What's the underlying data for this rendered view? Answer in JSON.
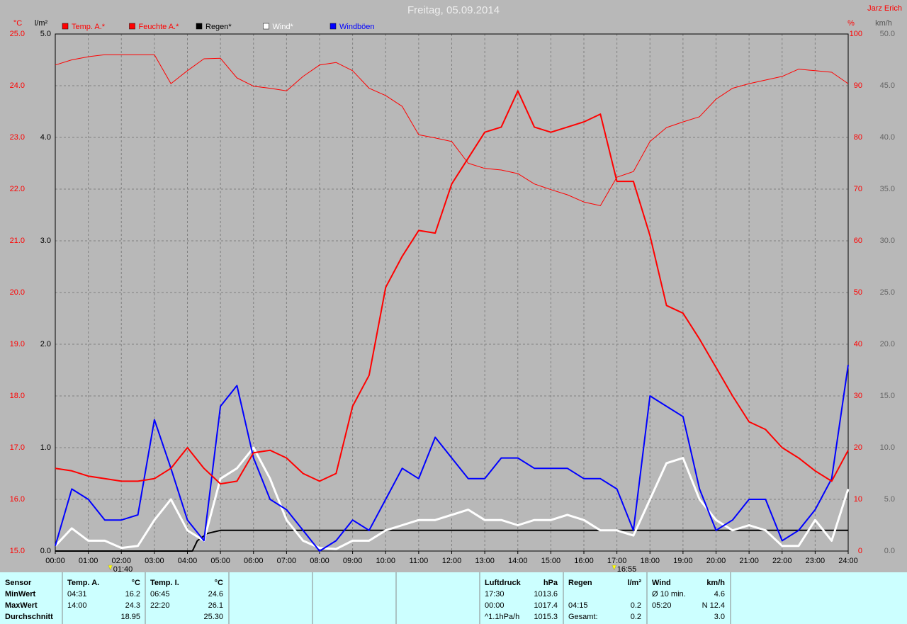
{
  "chart_data": {
    "type": "line",
    "title": "Freitag, 05.09.2014",
    "author": "Jarz Erich",
    "axis_units": {
      "y": "°C",
      "y3": "l/m²",
      "y2": "%",
      "y4": "km/h"
    },
    "xlim": [
      0,
      24
    ],
    "xticks": [
      {
        "value": 0,
        "label": "00:00"
      },
      {
        "value": 1,
        "label": "01:00"
      },
      {
        "value": 2,
        "label": "02:00"
      },
      {
        "value": 3,
        "label": "03:00"
      },
      {
        "value": 4,
        "label": "04:00"
      },
      {
        "value": 5,
        "label": "05:00"
      },
      {
        "value": 6,
        "label": "06:00"
      },
      {
        "value": 7,
        "label": "07:00"
      },
      {
        "value": 8,
        "label": "08:00"
      },
      {
        "value": 9,
        "label": "09:00"
      },
      {
        "value": 10,
        "label": "10:00"
      },
      {
        "value": 11,
        "label": "11:00"
      },
      {
        "value": 12,
        "label": "12:00"
      },
      {
        "value": 13,
        "label": "13:00"
      },
      {
        "value": 14,
        "label": "14:00"
      },
      {
        "value": 15,
        "label": "15:00"
      },
      {
        "value": 16,
        "label": "16:00"
      },
      {
        "value": 17,
        "label": "17:00"
      },
      {
        "value": 18,
        "label": "18:00"
      },
      {
        "value": 19,
        "label": "19:00"
      },
      {
        "value": 20,
        "label": "20:00"
      },
      {
        "value": 21,
        "label": "21:00"
      },
      {
        "value": 22,
        "label": "22:00"
      },
      {
        "value": 23,
        "label": "23:00"
      },
      {
        "value": 24,
        "label": "24:00"
      }
    ],
    "ylim": [
      15,
      25
    ],
    "yticks": [
      {
        "value": 15,
        "label": "15.0"
      },
      {
        "value": 16,
        "label": "16.0"
      },
      {
        "value": 17,
        "label": "17.0"
      },
      {
        "value": 18,
        "label": "18.0"
      },
      {
        "value": 19,
        "label": "19.0"
      },
      {
        "value": 20,
        "label": "20.0"
      },
      {
        "value": 21,
        "label": "21.0"
      },
      {
        "value": 22,
        "label": "22.0"
      },
      {
        "value": 23,
        "label": "23.0"
      },
      {
        "value": 24,
        "label": "24.0"
      },
      {
        "value": 25,
        "label": "25.0"
      }
    ],
    "y3lim": [
      0,
      5
    ],
    "y3ticks": [
      {
        "value": 0,
        "label": "0.0"
      },
      {
        "value": 1,
        "label": "1.0"
      },
      {
        "value": 2,
        "label": "2.0"
      },
      {
        "value": 3,
        "label": "3.0"
      },
      {
        "value": 4,
        "label": "4.0"
      },
      {
        "value": 5,
        "label": "5.0"
      }
    ],
    "y2lim": [
      0,
      100
    ],
    "y2ticks": [
      0,
      10,
      20,
      30,
      40,
      50,
      60,
      70,
      80,
      90,
      100
    ],
    "y4lim": [
      0,
      50
    ],
    "y4ticks": [
      {
        "value": 0,
        "label": "0.0"
      },
      {
        "value": 5,
        "label": "5.0"
      },
      {
        "value": 10,
        "label": "10.0"
      },
      {
        "value": 15,
        "label": "15.0"
      },
      {
        "value": 20,
        "label": "20.0"
      },
      {
        "value": 25,
        "label": "25.0"
      },
      {
        "value": 30,
        "label": "30.0"
      },
      {
        "value": 35,
        "label": "35.0"
      },
      {
        "value": 40,
        "label": "40.0"
      },
      {
        "value": 45,
        "label": "45.0"
      },
      {
        "value": 50,
        "label": "50.0"
      }
    ],
    "grid": true,
    "x": [
      0,
      0.5,
      1,
      1.5,
      2,
      2.5,
      3,
      3.5,
      4,
      4.5,
      5,
      5.5,
      6,
      6.5,
      7,
      7.5,
      8,
      8.5,
      9,
      9.5,
      10,
      10.5,
      11,
      11.5,
      12,
      12.5,
      13,
      13.5,
      14,
      14.5,
      15,
      15.5,
      16,
      16.5,
      17,
      17.5,
      18,
      18.5,
      19,
      19.5,
      20,
      20.5,
      21,
      21.5,
      22,
      22.5,
      23,
      23.5,
      24
    ],
    "series": [
      {
        "name": "Temp. A.*",
        "color": "#ff0000",
        "axis": "y",
        "width": 2,
        "values": [
          16.6,
          16.55,
          16.45,
          16.4,
          16.35,
          16.35,
          16.4,
          16.6,
          17.0,
          16.6,
          16.3,
          16.35,
          16.9,
          16.95,
          16.8,
          16.5,
          16.35,
          16.5,
          17.8,
          18.4,
          20.1,
          20.7,
          21.2,
          21.15,
          22.1,
          22.6,
          23.1,
          23.2,
          23.9,
          23.2,
          23.1,
          23.2,
          23.3,
          23.45,
          22.15,
          22.15,
          21.1,
          19.75,
          19.6,
          19.1,
          18.55,
          18.0,
          17.5,
          17.35,
          17.0,
          16.8,
          16.55,
          16.35,
          16.95
        ]
      },
      {
        "name": "Feuchte A.*",
        "color": "#ff0000",
        "axis": "y2",
        "width": 1,
        "values": [
          94,
          95,
          95.6,
          96,
          96,
          96,
          96,
          90.4,
          92.9,
          95.2,
          95.3,
          91.5,
          89.9,
          89.5,
          89,
          91.8,
          94,
          94.5,
          92.9,
          89.5,
          88.1,
          86,
          80.5,
          79.9,
          79.2,
          75,
          74,
          73.7,
          73,
          71,
          69.9,
          68.9,
          67.5,
          66.8,
          72.3,
          73.4,
          79.2,
          81.9,
          83,
          84,
          87.4,
          89.5,
          90.4,
          91.1,
          91.8,
          93.2,
          92.9,
          92.6,
          90.4
        ]
      },
      {
        "name": "Regen*",
        "color": "#000000",
        "axis": "y3",
        "width": 2,
        "x": [
          0,
          4.15,
          4.3,
          4.6,
          5,
          24
        ],
        "values": [
          0,
          0,
          0.1,
          0.17,
          0.2,
          0.2
        ]
      },
      {
        "name": "Wind*",
        "color": "#ffffff",
        "axis": "y4",
        "width": 3,
        "values": [
          0.5,
          2.2,
          1,
          1,
          0.3,
          0.5,
          3,
          5,
          2,
          1,
          7,
          8,
          10,
          7,
          3,
          1,
          0.3,
          0.2,
          1,
          1,
          2,
          2.5,
          3,
          3,
          3.5,
          4,
          3,
          3,
          2.5,
          3,
          3,
          3.5,
          3,
          2,
          2,
          1.5,
          5,
          8.5,
          9,
          5,
          3,
          2,
          2.5,
          2,
          0.5,
          0.5,
          3,
          1,
          6
        ]
      },
      {
        "name": "Windböen",
        "color": "#0000ff",
        "axis": "y4",
        "width": 2,
        "values": [
          0.5,
          6,
          5,
          3,
          3,
          3.5,
          12.7,
          8,
          3,
          1,
          14,
          16,
          9,
          5,
          4,
          2,
          0,
          1,
          3,
          2,
          5,
          8,
          7,
          11,
          9,
          7,
          7,
          9,
          9,
          8,
          8,
          8,
          7,
          7,
          6,
          2,
          15,
          14,
          13,
          6,
          2,
          3,
          5,
          5,
          1,
          2,
          4,
          7,
          18
        ]
      }
    ],
    "annotations": [
      {
        "x": 1.6667,
        "label": "01:40"
      },
      {
        "x": 16.9167,
        "label": "16:55"
      }
    ]
  },
  "table": {
    "row_labels": [
      "Sensor",
      "MinWert",
      "MaxWert",
      "Durchschnitt"
    ],
    "groups": [
      {
        "title": "Temp. A.",
        "unit": "°C",
        "rows": [
          [
            "04:31",
            "16.2"
          ],
          [
            "14:00",
            "24.3"
          ],
          [
            "18.95"
          ]
        ]
      },
      {
        "title": "Temp. I.",
        "unit": "°C",
        "rows": [
          [
            "06:45",
            "24.6"
          ],
          [
            "22:20",
            "26.1"
          ],
          [
            "25.30"
          ]
        ]
      },
      {
        "title": "Luftdruck",
        "unit": "hPa",
        "rows": [
          [
            "17:30",
            "1013.6"
          ],
          [
            "00:00",
            "1017.4"
          ],
          [
            "^1.1hPa/h",
            "1015.3"
          ]
        ]
      },
      {
        "title": "Regen",
        "unit": "l/m²",
        "rows": [
          [],
          [
            "04:15",
            "0.2"
          ],
          [
            "Gesamt:",
            "0.2"
          ]
        ]
      },
      {
        "title": "Wind",
        "unit": "km/h",
        "rows": [
          [
            "Ø 10 min.",
            "4.6"
          ],
          [
            "05:20",
            "N 12.4"
          ],
          [
            "3.0"
          ]
        ]
      }
    ]
  }
}
